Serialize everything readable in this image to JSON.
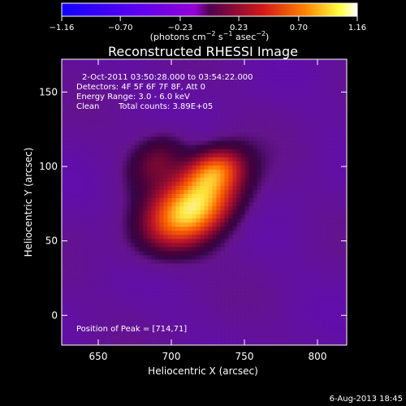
{
  "chart_data": {
    "type": "heatmap",
    "title": "Reconstructed RHESSI Image",
    "xlabel": "Heliocentric X (arcsec)",
    "ylabel": "Heliocentric Y (arcsec)",
    "xlim": [
      625,
      820
    ],
    "ylim": [
      -20,
      172
    ],
    "x_ticks": [
      650,
      700,
      750,
      800
    ],
    "y_ticks": [
      0,
      50,
      100,
      150
    ],
    "colorbar": {
      "colormap": "rhessi-heat",
      "ticks": [
        -1.16,
        -0.7,
        -0.23,
        0.23,
        0.7,
        1.16
      ],
      "tick_labels": [
        "−1.16",
        "−0.70",
        "−0.23",
        "0.23",
        "0.70",
        "1.16"
      ],
      "unit_label": {
        "prefix": "(photons cm",
        "sup1": "−2",
        "mid": " s",
        "sup2": "−1",
        "mid2": " asec",
        "sup3": "−2",
        "suffix": ")"
      },
      "colors": {
        "negative_low": "#1400ff",
        "negative_high": "#9400d6",
        "positive_low": "#500050",
        "positive_mid": "#d01818",
        "positive_high": "#ffff40",
        "peak": "#ffffff"
      }
    },
    "annotations": {
      "time_range": "2-Oct-2011 03:50:28.000 to 03:54:22.000",
      "detectors": "Detectors: 4F 5F 6F 7F 8F, Att 0",
      "energy_range": "Energy Range: 3.0 - 6.0 keV",
      "algorithm": "Clean",
      "total_counts": "Total counts: 3.89E+05",
      "peak_position": "Position of Peak = [714,71]"
    },
    "peak": {
      "x": 714,
      "y": 71,
      "value": 1.16
    },
    "sources": [
      {
        "x": 714,
        "y": 71,
        "sigma_major_arcsec": 24,
        "sigma_minor_arcsec": 15,
        "angle_deg": 32,
        "amplitude": 1.16
      },
      {
        "x": 730,
        "y": 98,
        "sigma_major_arcsec": 14,
        "sigma_minor_arcsec": 10,
        "angle_deg": 20,
        "amplitude": 0.62
      },
      {
        "x": 690,
        "y": 105,
        "sigma_major_arcsec": 16,
        "sigma_minor_arcsec": 11,
        "angle_deg": 40,
        "amplitude": 0.35
      }
    ],
    "background_level": -0.18,
    "date_stamp": "6-Aug-2013 18:45"
  }
}
